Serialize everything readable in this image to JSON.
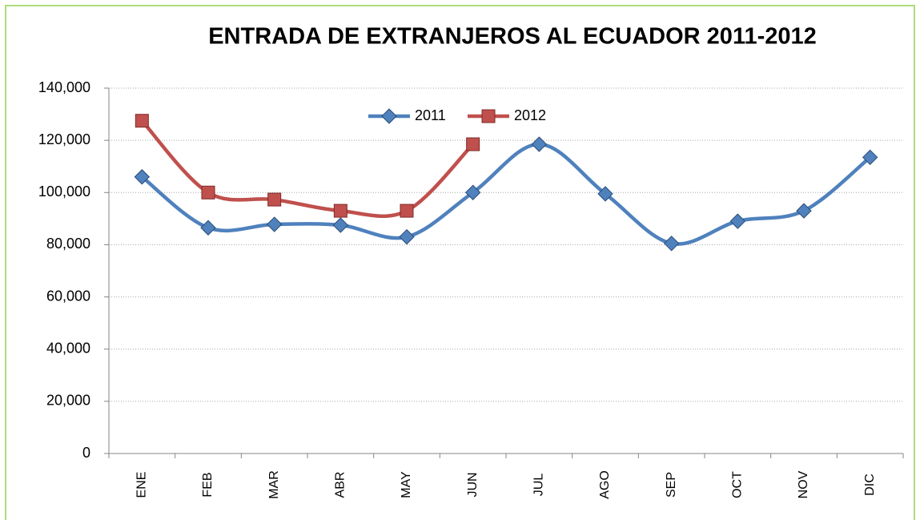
{
  "chart_data": {
    "type": "line",
    "title": "ENTRADA DE EXTRANJEROS AL ECUADOR 2011-2012",
    "categories": [
      "ENE",
      "FEB",
      "MAR",
      "ABR",
      "MAY",
      "JUN",
      "JUL",
      "AGO",
      "SEP",
      "OCT",
      "NOV",
      "DIC"
    ],
    "series": [
      {
        "name": "2011",
        "color": "#4f81bd",
        "values": [
          106000,
          86500,
          87800,
          87500,
          83000,
          100000,
          118500,
          99500,
          80500,
          89000,
          93000,
          113500
        ]
      },
      {
        "name": "2012",
        "color": "#c0504d",
        "values": [
          127500,
          100000,
          97300,
          93000,
          93000,
          118500,
          null,
          null,
          null,
          null,
          null,
          null
        ]
      }
    ],
    "ylim": [
      0,
      140000
    ],
    "yticks": [
      0,
      {
        "value": 20000,
        "label": "20,000"
      },
      {
        "value": 40000,
        "label": "40,000"
      },
      {
        "value": 60000,
        "label": "60,000"
      },
      {
        "value": 80000,
        "label": "80,000"
      },
      {
        "value": 100000,
        "label": "100,000"
      },
      {
        "value": 120000,
        "label": "120,000"
      },
      {
        "value": 140000,
        "label": "140,000"
      }
    ],
    "grid": true,
    "smooth": true,
    "legend": "top"
  }
}
